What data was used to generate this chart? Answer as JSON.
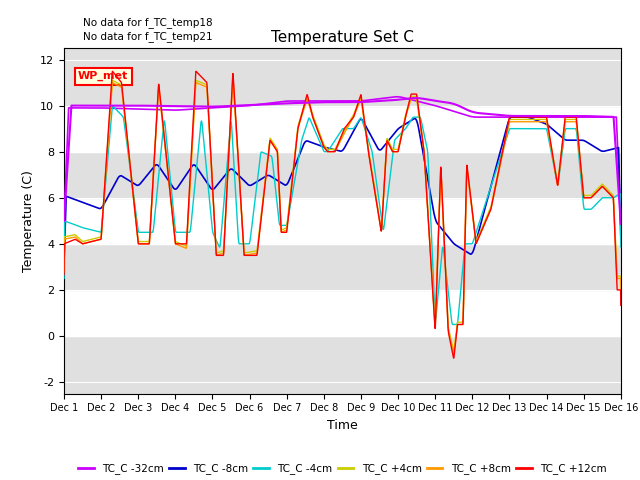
{
  "title": "Temperature Set C",
  "xlabel": "Time",
  "ylabel": "Temperature (C)",
  "ylim": [
    -2.5,
    12.5
  ],
  "yticks": [
    -2,
    0,
    2,
    4,
    6,
    8,
    10,
    12
  ],
  "xlim": [
    0,
    15
  ],
  "xtick_labels": [
    "Dec 1",
    "Dec 2",
    "Dec 3",
    "Dec 4",
    "Dec 5",
    "Dec 6",
    "Dec 7",
    "Dec 8",
    "Dec 9",
    "Dec 10",
    "Dec 11",
    "Dec 12",
    "Dec 13",
    "Dec 14",
    "Dec 15",
    "Dec 16"
  ],
  "note1": "No data for f_TC_temp18",
  "note2": "No data for f_TC_temp21",
  "wp_met_label": "WP_met",
  "legend_entries": [
    "TC_C -32cm",
    "TC_C -8cm",
    "TC_C -4cm",
    "TC_C +4cm",
    "TC_C +8cm",
    "TC_C +12cm"
  ],
  "colors": {
    "TC_C_-32cm": "#cc00ff",
    "TC_C_-8cm": "#0000cc",
    "TC_C_-4cm": "#00cccc",
    "TC_C_+4cm": "#cccc00",
    "TC_C_+8cm": "#ff9900",
    "TC_C_+12cm": "#ff0000",
    "WP_met": "#cc00ff"
  }
}
